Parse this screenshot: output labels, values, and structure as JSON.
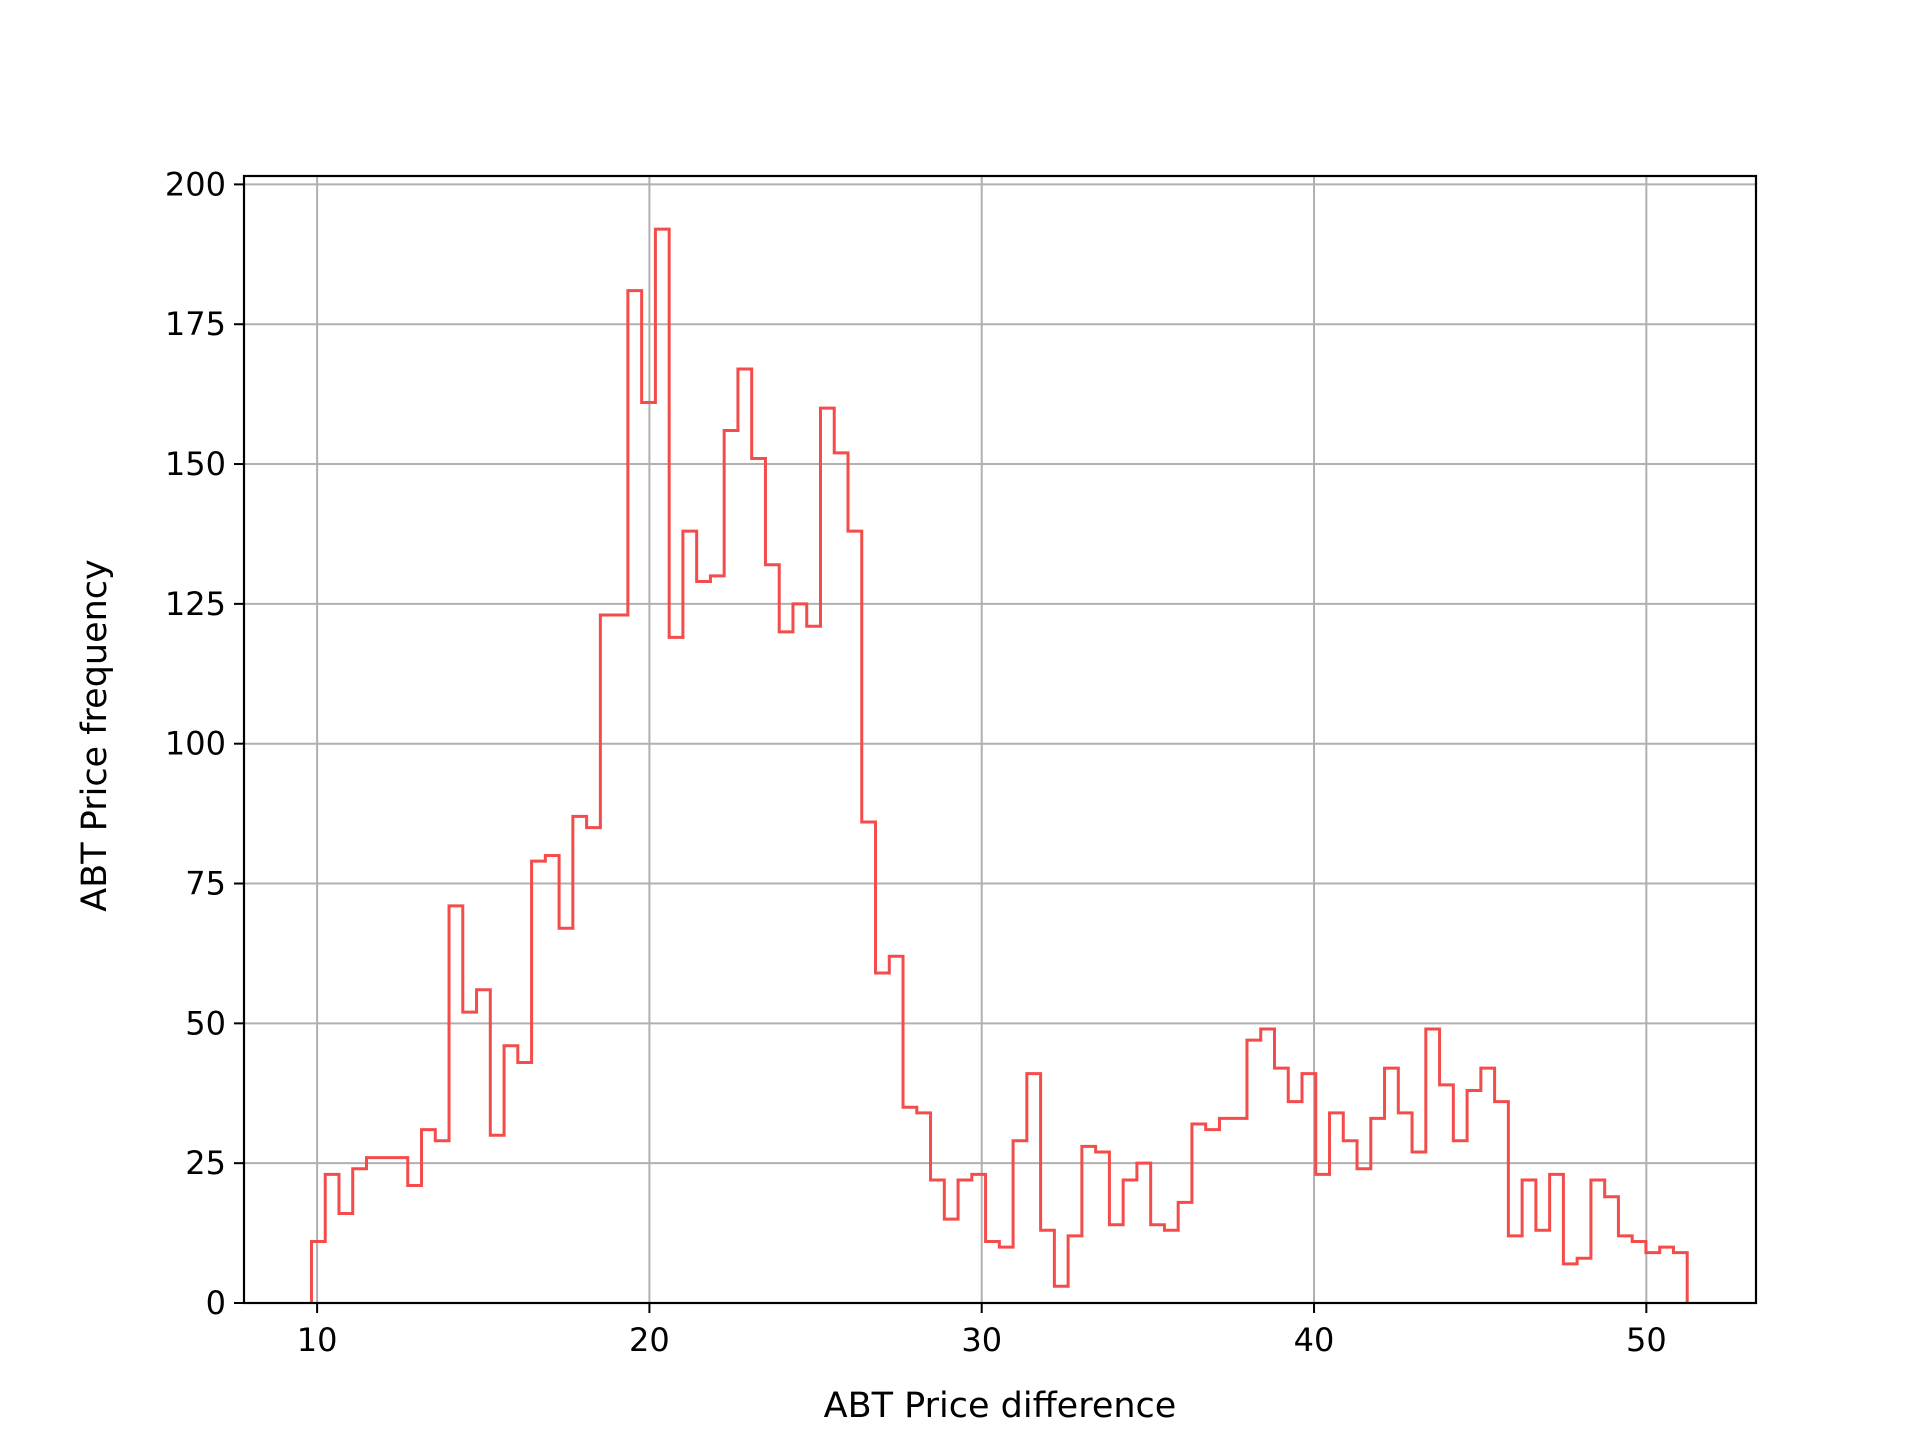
{
  "chart_data": {
    "type": "histogram",
    "histtype": "step",
    "color": "#f44b4b",
    "xlabel": "ABT Price difference",
    "ylabel": "ABT Price frequency",
    "xlim": [
      7.8,
      53.3
    ],
    "ylim": [
      0,
      201.5
    ],
    "xticks": [
      10,
      20,
      30,
      40,
      50
    ],
    "yticks": [
      0,
      25,
      50,
      75,
      100,
      125,
      150,
      175,
      200
    ],
    "grid": true,
    "bin_range": [
      9.83,
      51.23
    ],
    "counts": [
      11,
      23,
      16,
      24,
      26,
      26,
      26,
      21,
      31,
      29,
      71,
      52,
      56,
      30,
      46,
      43,
      79,
      80,
      67,
      87,
      85,
      123,
      123,
      181,
      161,
      192,
      119,
      138,
      129,
      130,
      156,
      167,
      151,
      132,
      120,
      125,
      121,
      160,
      152,
      138,
      86,
      59,
      62,
      35,
      34,
      22,
      15,
      22,
      23,
      11,
      10,
      29,
      41,
      13,
      3,
      12,
      28,
      27,
      14,
      22,
      25,
      14,
      13,
      18,
      32,
      31,
      33,
      33,
      47,
      49,
      42,
      36,
      41,
      23,
      34,
      29,
      24,
      33,
      42,
      34,
      27,
      49,
      39,
      29,
      38,
      42,
      36,
      12,
      22,
      13,
      23,
      7,
      8,
      22,
      19,
      12,
      11,
      9,
      10,
      9
    ]
  }
}
